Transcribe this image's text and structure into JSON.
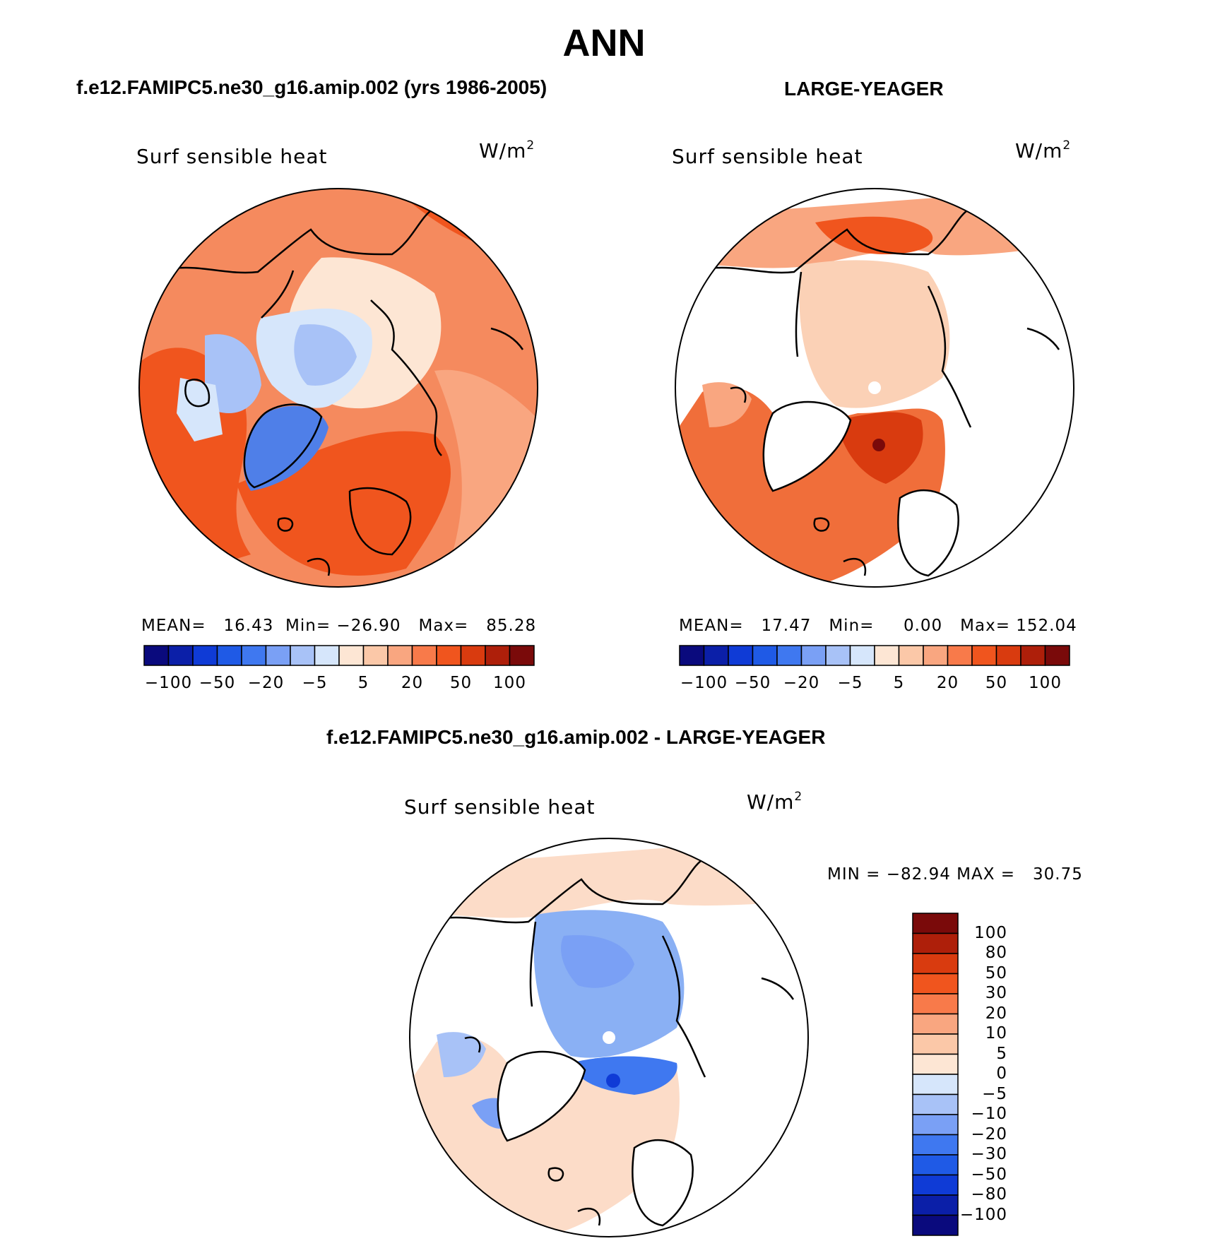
{
  "title": "ANN",
  "panels": [
    {
      "heading": "f.e12.FAMIPC5.ne30_g16.amip.002 (yrs 1986-2005)",
      "variable": "Surf  sensible  heat",
      "units_base": "W/m",
      "units_sup": "2",
      "stats": {
        "mean_label": "MEAN=",
        "mean": "16.43",
        "min_label": "Min=",
        "min": "−26.90",
        "max_label": "Max=",
        "max": "85.28"
      },
      "colorbar_ticks": [
        "−100",
        "−50",
        "−20",
        "−5",
        "5",
        "20",
        "50",
        "100"
      ]
    },
    {
      "heading": "LARGE-YEAGER",
      "variable": "Surf  sensible  heat",
      "units_base": "W/m",
      "units_sup": "2",
      "stats": {
        "mean_label": "MEAN=",
        "mean": "17.47",
        "min_label": "Min=",
        "min": "0.00",
        "max_label": "Max=",
        "max": "152.04"
      },
      "colorbar_ticks": [
        "−100",
        "−50",
        "−20",
        "−5",
        "5",
        "20",
        "50",
        "100"
      ]
    },
    {
      "heading": "f.e12.FAMIPC5.ne30_g16.amip.002 - LARGE-YEAGER",
      "variable": "Surf  sensible  heat",
      "units_base": "W/m",
      "units_sup": "2",
      "stats_line": "MIN = −82.94 MAX =   30.75",
      "colorbar_ticks": [
        "100",
        "80",
        "50",
        "30",
        "20",
        "10",
        "5",
        "0",
        "−5",
        "−10",
        "−20",
        "−30",
        "−50",
        "−80",
        "−100"
      ]
    }
  ],
  "colors": {
    "horizontal_bar": [
      "#0a0a7d",
      "#0b1fa8",
      "#0f3bd6",
      "#1f5ae6",
      "#3f78f0",
      "#7aa0f5",
      "#a8c2f7",
      "#d6e6fb",
      "#fde6d4",
      "#fbc8a8",
      "#f9a680",
      "#f87a4a",
      "#f0551e",
      "#d93b0f",
      "#ae1f0a",
      "#7a0a0a"
    ],
    "vertical_bar_top_to_bottom": [
      "#7a0a0a",
      "#ae1f0a",
      "#d93b0f",
      "#f0551e",
      "#f87a4a",
      "#f9a680",
      "#fbc8a8",
      "#fde6d4",
      "#d6e6fb",
      "#a8c2f7",
      "#7aa0f5",
      "#3f78f0",
      "#1f5ae6",
      "#0f3bd6",
      "#0b1fa8",
      "#0a0a7d"
    ],
    "panel1_fill": "#f58a5e",
    "panel1_ice": "#bcd3f8",
    "panel1_ice_deep": "#4f7fe8",
    "panel2_fill": "#fbd1b6",
    "panel2_strong": "#f06e3a",
    "panel3_fill": "#8ab0f4",
    "panel3_warm": "#fcdcc8"
  },
  "chart_data": [
    {
      "type": "heatmap",
      "title": "f.e12.FAMIPC5.ne30_g16.amip.002 (yrs 1986-2005)",
      "variable": "Surf  sensible  heat",
      "units": "W/m2",
      "mean": 16.43,
      "min": -26.9,
      "max": 85.28,
      "levels": [
        -100,
        -80,
        -50,
        -30,
        -20,
        -10,
        -5,
        0,
        5,
        10,
        20,
        30,
        50,
        80,
        100
      ],
      "colorbar_labels": [
        -100,
        -50,
        -20,
        -5,
        5,
        20,
        50,
        100
      ]
    },
    {
      "type": "heatmap",
      "title": "LARGE-YEAGER",
      "variable": "Surf  sensible  heat",
      "units": "W/m2",
      "mean": 17.47,
      "min": 0.0,
      "max": 152.04,
      "levels": [
        -100,
        -80,
        -50,
        -30,
        -20,
        -10,
        -5,
        0,
        5,
        10,
        20,
        30,
        50,
        80,
        100
      ],
      "colorbar_labels": [
        -100,
        -50,
        -20,
        -5,
        5,
        20,
        50,
        100
      ]
    },
    {
      "type": "heatmap",
      "title": "f.e12.FAMIPC5.ne30_g16.amip.002 - LARGE-YEAGER",
      "variable": "Surf  sensible  heat",
      "units": "W/m2",
      "min": -82.94,
      "max": 30.75,
      "levels": [
        -100,
        -80,
        -50,
        -30,
        -20,
        -10,
        -5,
        0,
        5,
        10,
        20,
        30,
        50,
        80,
        100
      ],
      "colorbar_labels": [
        100,
        80,
        50,
        30,
        20,
        10,
        5,
        0,
        -5,
        -10,
        -20,
        -30,
        -50,
        -80,
        -100
      ]
    }
  ]
}
